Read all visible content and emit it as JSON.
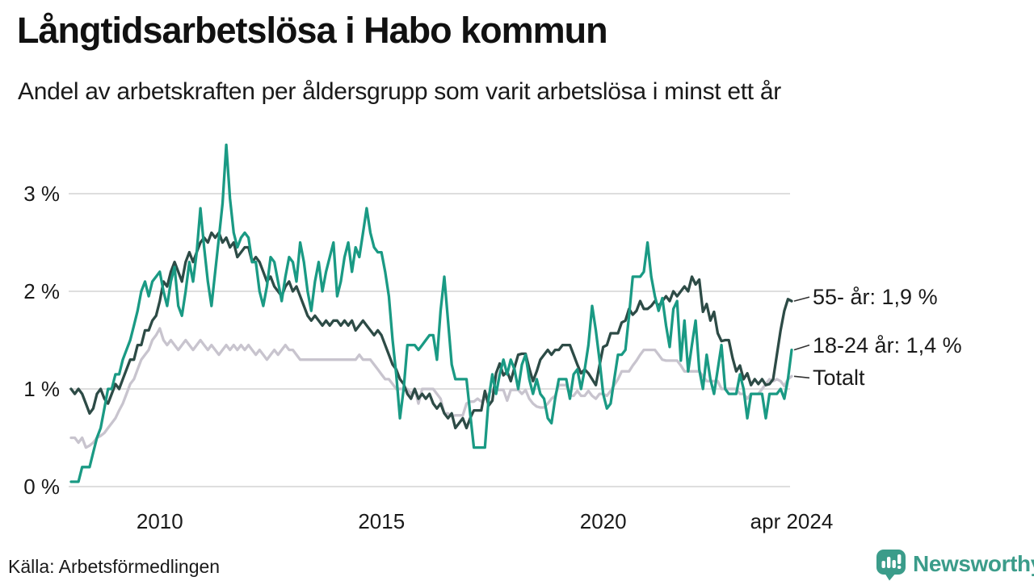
{
  "header": {
    "title": "Långtidsarbetslösa i Habo kommun",
    "subtitle": "Andel av arbetskraften per åldersgrupp som varit arbetslösa i minst ett år"
  },
  "footer": {
    "source": "Källa: Arbetsförmedlingen",
    "brand": "Newsworthy",
    "brand_color": "#3b9c8a"
  },
  "chart_data": {
    "type": "line",
    "title": "Långtidsarbetslösa i Habo kommun",
    "subtitle": "Andel av arbetskraften per åldersgrupp som varit arbetslösa i minst ett år",
    "unit": "percent of labour force, monthly",
    "grid_color": "#dedede",
    "grid_on": true,
    "ylim": [
      0,
      3.6
    ],
    "x_axis": {
      "start_year": 2008.0,
      "end_year": 2024.25,
      "ticks": [
        {
          "label": "2010",
          "year": 2010
        },
        {
          "label": "2015",
          "year": 2015
        },
        {
          "label": "2020",
          "year": 2020
        },
        {
          "label": "apr 2024",
          "year": 2024.25
        }
      ]
    },
    "y_axis": {
      "ticks": [
        {
          "label": "0 %",
          "value": 0
        },
        {
          "label": "1 %",
          "value": 1
        },
        {
          "label": "2 %",
          "value": 2
        },
        {
          "label": "3 %",
          "value": 3
        }
      ]
    },
    "series": [
      {
        "name": "55- år",
        "end_label": "55- år: 1,9 %",
        "color": "#2d4b46",
        "values": [
          1.0,
          0.95,
          1.0,
          0.95,
          0.85,
          0.75,
          0.8,
          0.95,
          1.0,
          0.9,
          0.85,
          0.95,
          1.05,
          1.0,
          1.1,
          1.2,
          1.3,
          1.3,
          1.45,
          1.45,
          1.6,
          1.6,
          1.7,
          1.75,
          1.9,
          2.1,
          2.05,
          2.2,
          2.3,
          2.2,
          2.1,
          2.3,
          2.4,
          2.3,
          2.4,
          2.5,
          2.55,
          2.5,
          2.6,
          2.55,
          2.6,
          2.5,
          2.55,
          2.45,
          2.5,
          2.35,
          2.4,
          2.45,
          2.45,
          2.3,
          2.35,
          2.3,
          2.2,
          2.1,
          2.15,
          2.05,
          2.0,
          1.95,
          2.05,
          2.1,
          2.0,
          2.05,
          1.95,
          1.85,
          1.75,
          1.7,
          1.75,
          1.7,
          1.65,
          1.7,
          1.65,
          1.7,
          1.7,
          1.65,
          1.7,
          1.65,
          1.7,
          1.6,
          1.65,
          1.7,
          1.65,
          1.6,
          1.55,
          1.6,
          1.55,
          1.45,
          1.35,
          1.25,
          1.2,
          1.1,
          1.05,
          0.95,
          0.9,
          1.0,
          0.9,
          0.95,
          0.9,
          0.95,
          0.85,
          0.8,
          0.85,
          0.75,
          0.7,
          0.75,
          0.6,
          0.65,
          0.7,
          0.6,
          0.7,
          0.78,
          0.78,
          0.78,
          0.98,
          0.83,
          0.88,
          1.16,
          1.26,
          1.14,
          1.18,
          1.08,
          1.22,
          1.35,
          1.36,
          1.36,
          1.21,
          1.08,
          1.18,
          1.3,
          1.35,
          1.4,
          1.35,
          1.4,
          1.4,
          1.45,
          1.45,
          1.45,
          1.35,
          1.25,
          1.16,
          1.2,
          1.16,
          1.1,
          1.04,
          1.24,
          1.43,
          1.45,
          1.57,
          1.57,
          1.57,
          1.68,
          1.7,
          1.82,
          1.76,
          1.8,
          1.9,
          1.82,
          1.82,
          1.85,
          1.9,
          1.85,
          1.9,
          1.95,
          1.9,
          2.0,
          1.95,
          2.0,
          2.05,
          2.0,
          2.15,
          2.07,
          2.12,
          1.79,
          1.87,
          1.7,
          1.79,
          1.57,
          1.49,
          1.5,
          1.5,
          1.32,
          1.18,
          1.24,
          1.1,
          1.16,
          1.04,
          1.1,
          1.05,
          1.1,
          1.04,
          1.05,
          1.1,
          1.35,
          1.6,
          1.8,
          1.92,
          1.9
        ]
      },
      {
        "name": "18-24 år",
        "end_label": "18-24 år: 1,4 %",
        "color": "#1a9a84",
        "values": [
          0.05,
          0.05,
          0.05,
          0.2,
          0.2,
          0.2,
          0.35,
          0.5,
          0.6,
          0.8,
          1.0,
          1.0,
          1.15,
          1.15,
          1.3,
          1.4,
          1.5,
          1.65,
          1.8,
          2.0,
          2.1,
          1.95,
          2.1,
          2.15,
          2.2,
          2.0,
          1.85,
          2.1,
          2.25,
          1.85,
          1.75,
          2.0,
          2.3,
          2.1,
          2.4,
          2.85,
          2.45,
          2.1,
          1.85,
          2.2,
          2.55,
          2.9,
          3.5,
          2.95,
          2.6,
          2.45,
          2.55,
          2.6,
          2.55,
          2.3,
          2.3,
          2.0,
          1.85,
          2.05,
          2.35,
          2.3,
          2.1,
          1.9,
          2.15,
          2.35,
          2.3,
          2.1,
          2.5,
          2.3,
          2.0,
          1.8,
          2.1,
          2.3,
          2.0,
          2.2,
          2.35,
          2.5,
          1.95,
          2.1,
          2.35,
          2.5,
          2.2,
          2.45,
          2.35,
          2.6,
          2.85,
          2.6,
          2.45,
          2.4,
          2.4,
          2.2,
          1.95,
          1.5,
          1.15,
          0.7,
          1.0,
          1.45,
          1.45,
          1.45,
          1.4,
          1.45,
          1.5,
          1.55,
          1.55,
          1.3,
          1.8,
          2.15,
          1.7,
          1.25,
          1.1,
          1.1,
          1.1,
          1.1,
          0.75,
          0.4,
          0.4,
          0.4,
          0.4,
          0.9,
          1.15,
          0.95,
          1.15,
          1.3,
          1.15,
          1.3,
          1.2,
          1.0,
          1.25,
          1.35,
          1.1,
          0.95,
          1.1,
          0.95,
          0.9,
          0.7,
          0.65,
          0.9,
          1.1,
          1.1,
          1.1,
          0.9,
          1.15,
          1.2,
          1.0,
          1.2,
          1.45,
          1.85,
          1.6,
          1.3,
          0.95,
          0.8,
          0.85,
          1.1,
          1.35,
          1.35,
          1.4,
          1.75,
          2.15,
          2.15,
          2.15,
          2.2,
          2.5,
          2.15,
          1.95,
          1.8,
          1.93,
          1.65,
          1.43,
          1.82,
          1.9,
          1.29,
          1.7,
          1.18,
          1.45,
          1.7,
          1.2,
          1.0,
          1.35,
          1.1,
          0.95,
          1.2,
          1.45,
          1.0,
          0.95,
          0.95,
          0.95,
          1.15,
          1.0,
          0.7,
          0.95,
          0.95,
          0.95,
          0.95,
          0.7,
          0.95,
          0.95,
          0.95,
          1.0,
          0.9,
          1.1,
          1.4
        ]
      },
      {
        "name": "Totalt",
        "end_label": "Totalt",
        "color": "#c8c4ce",
        "values": [
          0.5,
          0.5,
          0.45,
          0.5,
          0.4,
          0.42,
          0.45,
          0.5,
          0.52,
          0.55,
          0.6,
          0.65,
          0.7,
          0.78,
          0.85,
          0.95,
          1.05,
          1.1,
          1.2,
          1.3,
          1.35,
          1.4,
          1.5,
          1.55,
          1.62,
          1.5,
          1.45,
          1.5,
          1.45,
          1.4,
          1.45,
          1.5,
          1.45,
          1.4,
          1.45,
          1.5,
          1.45,
          1.4,
          1.45,
          1.4,
          1.35,
          1.4,
          1.45,
          1.4,
          1.45,
          1.4,
          1.45,
          1.4,
          1.45,
          1.4,
          1.35,
          1.4,
          1.35,
          1.3,
          1.35,
          1.4,
          1.35,
          1.4,
          1.45,
          1.4,
          1.4,
          1.35,
          1.3,
          1.3,
          1.3,
          1.3,
          1.3,
          1.3,
          1.3,
          1.3,
          1.3,
          1.3,
          1.3,
          1.3,
          1.3,
          1.3,
          1.3,
          1.3,
          1.35,
          1.3,
          1.3,
          1.3,
          1.25,
          1.2,
          1.15,
          1.1,
          1.1,
          1.05,
          1.0,
          1.0,
          1.0,
          1.0,
          0.95,
          1.0,
          0.85,
          1.0,
          1.0,
          1.0,
          1.0,
          0.95,
          0.9,
          0.75,
          0.75,
          0.72,
          0.73,
          0.73,
          0.73,
          0.85,
          0.87,
          0.87,
          0.9,
          0.87,
          0.9,
          0.95,
          0.99,
          0.99,
          0.99,
          0.99,
          0.88,
          0.99,
          0.99,
          0.99,
          0.95,
          0.99,
          0.9,
          0.85,
          0.82,
          0.81,
          0.81,
          0.85,
          0.9,
          0.93,
          1.04,
          1.04,
          1.04,
          0.93,
          0.93,
          0.98,
          0.93,
          0.93,
          0.98,
          0.93,
          0.9,
          0.95,
          0.95,
          0.93,
          0.98,
          1.04,
          1.1,
          1.18,
          1.18,
          1.18,
          1.24,
          1.29,
          1.35,
          1.4,
          1.4,
          1.4,
          1.4,
          1.35,
          1.3,
          1.29,
          1.29,
          1.29,
          1.29,
          1.24,
          1.18,
          1.18,
          1.18,
          1.18,
          1.18,
          1.13,
          1.08,
          1.08,
          1.08,
          1.08,
          1.0,
          1.0,
          1.0,
          1.0,
          1.0,
          0.95,
          0.95,
          0.9,
          0.95,
          0.95,
          0.95,
          1.0,
          1.05,
          1.1,
          1.08,
          1.1,
          1.08,
          1.03,
          1.1,
          1.13
        ]
      }
    ]
  }
}
